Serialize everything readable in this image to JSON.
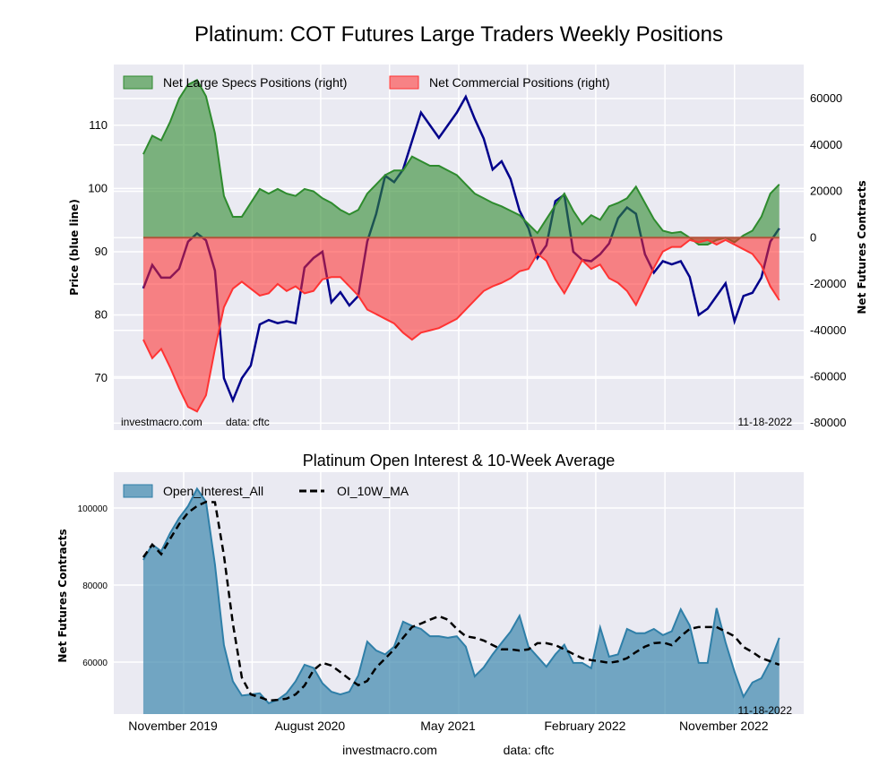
{
  "title": "Platinum: COT Futures Large Traders Weekly Positions",
  "footer": {
    "site": "investmacro.com",
    "source": "data: cftc"
  },
  "chart_data": [
    {
      "type": "area",
      "title": "Platinum: COT Futures Large Traders Weekly Positions",
      "ylabel_left": "Price (blue line)",
      "ylabel_right": "Net Futures Contracts",
      "x_unit": "weeks since start",
      "x_start": 0,
      "x_step": 2.55,
      "xlim": [
        -8.4,
        188
      ],
      "ylim_left": [
        61.8,
        119.6
      ],
      "ylim_right": [
        -83000,
        74700
      ],
      "yticks_left": [
        70,
        80,
        90,
        100,
        110
      ],
      "yticks_right": [
        -80000,
        -60000,
        -40000,
        -20000,
        0,
        20000,
        40000,
        60000
      ],
      "grid": true,
      "legend_placement": "top-left",
      "annotation_left": "investmacro.com",
      "annotation_source": "data: cftc",
      "annotation_date": "11-18-2022",
      "colors": {
        "specs": "#2e8b2e",
        "commercial": "#ff3333",
        "price": "#00008b"
      },
      "series": [
        {
          "name": "Net Large Specs Positions (right)",
          "axis": "right",
          "values": [
            36000,
            44000,
            42000,
            50000,
            60000,
            66000,
            68000,
            61000,
            45000,
            18000,
            9000,
            9000,
            15000,
            21000,
            19000,
            21000,
            19000,
            18000,
            21000,
            20000,
            17000,
            15000,
            12000,
            10000,
            12000,
            19000,
            23000,
            27000,
            29000,
            29000,
            35000,
            33000,
            31000,
            31000,
            29000,
            27000,
            23000,
            19000,
            17000,
            15000,
            13500,
            11600,
            9700,
            5800,
            2000,
            8000,
            14000,
            19000,
            11600,
            5800,
            9700,
            7700,
            13500,
            15000,
            17000,
            22000,
            15000,
            8000,
            3000,
            2000,
            2500,
            0,
            -3000,
            -3000,
            -1000,
            0,
            -2000,
            1000,
            3000,
            9000,
            19000,
            23000
          ]
        },
        {
          "name": "Net Commercial Positions (right)",
          "axis": "right",
          "values": [
            -44000,
            -52000,
            -48000,
            -56000,
            -65000,
            -73000,
            -75000,
            -68000,
            -48000,
            -30000,
            -22000,
            -19000,
            -22000,
            -25000,
            -24000,
            -20000,
            -23000,
            -21000,
            -24000,
            -23000,
            -18000,
            -17000,
            -17000,
            -21000,
            -25000,
            -31000,
            -33000,
            -35000,
            -37000,
            -41000,
            -44000,
            -41000,
            -40000,
            -39000,
            -37000,
            -35000,
            -31000,
            -27000,
            -23000,
            -21000,
            -19500,
            -17500,
            -14500,
            -13500,
            -7000,
            -10000,
            -18000,
            -24000,
            -17000,
            -9700,
            -13500,
            -11600,
            -17500,
            -19500,
            -23000,
            -29000,
            -21000,
            -13000,
            -6000,
            -4000,
            -4000,
            -1000,
            -2000,
            -1000,
            -3000,
            -1000,
            -3000,
            -5000,
            -7000,
            -12000,
            -21000,
            -27000
          ]
        },
        {
          "name": "Price",
          "axis": "left",
          "values": [
            84.2,
            87.9,
            85.9,
            85.9,
            87.3,
            91.6,
            92.9,
            91.8,
            87,
            70,
            66.5,
            70,
            72,
            78.5,
            79.2,
            78.7,
            79,
            78.7,
            87.5,
            89,
            90,
            82,
            83.6,
            81.5,
            83,
            91.6,
            96,
            102,
            101,
            103,
            107.5,
            112,
            110,
            108,
            110,
            112,
            114.5,
            111,
            107.9,
            103,
            104.3,
            101.5,
            96.5,
            93.7,
            89,
            91,
            98,
            99,
            90,
            88.7,
            88.5,
            89.6,
            91.3,
            95.3,
            97,
            96,
            89.6,
            86.7,
            88.5,
            88,
            88.5,
            86,
            80,
            81,
            83,
            85,
            79,
            83,
            83.5,
            85.9,
            91.6,
            93.7
          ]
        }
      ],
      "xticks": [
        {
          "label": "November 2019",
          "x": 11.5
        },
        {
          "label": "August 2020",
          "x": 50.5
        },
        {
          "label": "May 2021",
          "x": 89.8
        },
        {
          "label": "February 2022",
          "x": 128.8
        },
        {
          "label": "November 2022",
          "x": 168.3
        }
      ],
      "extra_xgrid": [
        31,
        70.1,
        109.3,
        148.5
      ]
    },
    {
      "type": "area",
      "title": "Platinum Open Interest & 10-Week Average",
      "ylabel": "Net Futures Contracts",
      "x_unit": "weeks since start",
      "x_start": 0,
      "x_step": 2.55,
      "xlim": [
        -8.4,
        188
      ],
      "ylim": [
        46500,
        109300
      ],
      "yticks": [
        60000,
        80000,
        100000
      ],
      "grid": true,
      "legend_placement": "top-left",
      "annotation_date": "11-18-2022",
      "colors": {
        "oi": "#2f7fa8",
        "ma": "#000000"
      },
      "series": [
        {
          "name": "Open_Interest_All",
          "values": [
            86500,
            90500,
            88800,
            93500,
            97400,
            100500,
            105000,
            101600,
            85300,
            64400,
            55000,
            51300,
            51600,
            51900,
            49300,
            50200,
            51900,
            55000,
            59300,
            58500,
            54500,
            52300,
            51600,
            52300,
            56500,
            65300,
            63000,
            62000,
            64000,
            70500,
            69400,
            68600,
            66700,
            66700,
            66300,
            66700,
            64000,
            56300,
            58600,
            62000,
            65000,
            67900,
            72000,
            64000,
            61400,
            58800,
            62000,
            64500,
            59800,
            59800,
            58400,
            69000,
            61400,
            62000,
            68600,
            67500,
            67500,
            68600,
            67000,
            68000,
            73700,
            69500,
            59800,
            59800,
            74000,
            65100,
            57500,
            51000,
            54700,
            55800,
            60200,
            66300
          ]
        },
        {
          "name": "OI_10W_MA",
          "values": [
            87200,
            90500,
            88000,
            92000,
            95800,
            98800,
            100500,
            101600,
            101500,
            87700,
            70000,
            56000,
            51600,
            50900,
            50000,
            50200,
            50500,
            51600,
            53900,
            57900,
            59800,
            59100,
            57400,
            55600,
            54000,
            55100,
            58600,
            60900,
            63300,
            66300,
            69100,
            70000,
            71000,
            71900,
            71000,
            68600,
            66700,
            66300,
            65600,
            64400,
            63300,
            63300,
            63000,
            63300,
            64900,
            64900,
            64400,
            63300,
            62100,
            61000,
            60500,
            60200,
            59800,
            60200,
            61000,
            62600,
            64000,
            64900,
            65100,
            64400,
            66700,
            68600,
            69100,
            69100,
            69100,
            67900,
            66700,
            63900,
            62600,
            61000,
            60200,
            59300
          ]
        }
      ],
      "xticks": [
        {
          "label": "November 2019",
          "x": 11.5
        },
        {
          "label": "August 2020",
          "x": 50.5
        },
        {
          "label": "May 2021",
          "x": 89.8
        },
        {
          "label": "February 2022",
          "x": 128.8
        },
        {
          "label": "November 2022",
          "x": 168.3
        }
      ],
      "extra_xgrid": [
        31,
        70.1,
        109.3,
        148.5
      ]
    }
  ]
}
